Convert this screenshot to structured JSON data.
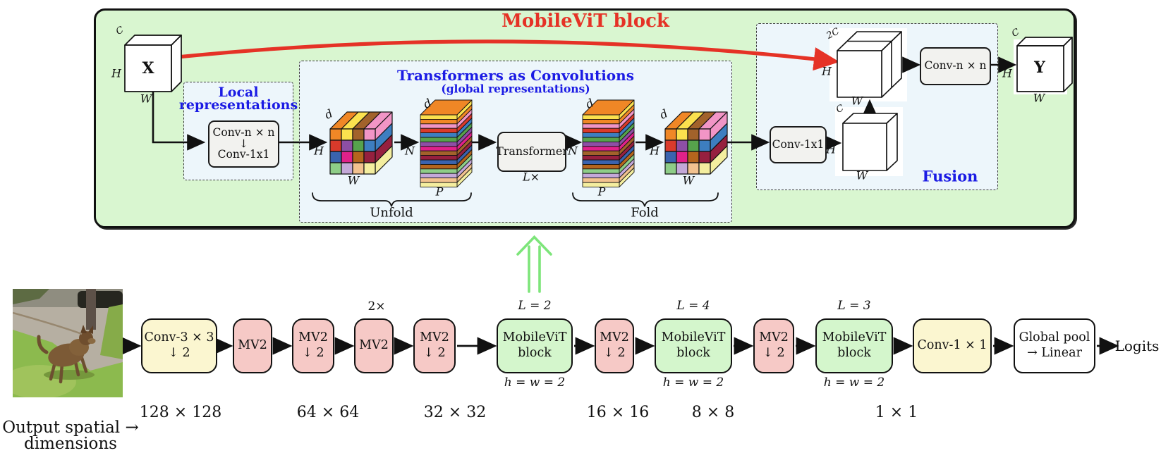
{
  "palette": {
    "panel_green": "#d9f6d0",
    "panel_blue": "#edf6fb",
    "box_gray": "#f2f2ef",
    "block_green": "#d4f6cc",
    "block_pink": "#f6c9c6",
    "block_yellow": "#fbf6d0",
    "accent_red": "#e53226",
    "accent_blue": "#1b1be4",
    "arrow_green": "#7de57a",
    "cube_front": [
      [
        "#f08726",
        "#fbe14e",
        "#a2622b",
        "#f195c6"
      ],
      [
        "#d93a2b",
        "#8d4fa5",
        "#56a24c",
        "#3d7ec0"
      ],
      [
        "#3a63ae",
        "#e0218a",
        "#b5651d",
        "#96203f"
      ],
      [
        "#8ecd87",
        "#c4a8d8",
        "#f2c28f",
        "#f4ee9f"
      ]
    ],
    "cube_side": [
      "#f195c6",
      "#3d7ec0",
      "#96203f",
      "#f4ee9f"
    ],
    "stack_top": "#f08726",
    "stack_strips": [
      "#fbe14e",
      "#f08726",
      "#f195c6",
      "#d93a2b",
      "#3d7ec0",
      "#56a24c",
      "#8d4fa5",
      "#e0218a",
      "#a2622b",
      "#96203f",
      "#3a63ae",
      "#b5651d",
      "#8ecd87",
      "#c4a8d8",
      "#f2c28f",
      "#f4ee9f"
    ]
  },
  "header": {
    "title": "MobileViT block"
  },
  "x_cube": {
    "name": "X",
    "c": "C",
    "h": "H",
    "w": "W"
  },
  "local": {
    "line1": "Local",
    "line2": "representations",
    "conv_a": "Conv-n × n",
    "arrow": "↓",
    "conv_b": "Conv-1x1"
  },
  "transformers": {
    "title": "Transformers as Convolutions",
    "subtitle": "(global representations)",
    "cube_in": {
      "d": "d",
      "h": "H",
      "w": "W"
    },
    "stack_in": {
      "d": "d",
      "n": "N",
      "p": "P"
    },
    "transformer": "Transformer",
    "repeat": "L×",
    "stack_out": {
      "d": "d",
      "n": "N",
      "p": "P"
    },
    "cube_out": {
      "d": "d",
      "h": "H",
      "w": "W"
    },
    "unfold": "Unfold",
    "fold": "Fold"
  },
  "fusion": {
    "conv_a": "Conv-1x1",
    "h1": "H",
    "cube_small": {
      "c": "C",
      "w": "W"
    },
    "cube_concat": {
      "c": "2C",
      "h": "H",
      "w": "W"
    },
    "conv_b": "Conv-n × n",
    "h2": "H",
    "label": "Fusion"
  },
  "y_cube": {
    "name": "Y",
    "c": "C",
    "h": "H",
    "w": "W"
  },
  "pipeline": {
    "blocks": [
      {
        "l1": "Conv-3 × 3",
        "l2": "↓ 2"
      },
      {
        "l1": "MV2"
      },
      {
        "l1": "MV2",
        "l2": "↓ 2"
      },
      {
        "l1": "MV2",
        "above": "2×"
      },
      {
        "l1": "MV2",
        "l2": "↓ 2"
      },
      {
        "l1": "MobileViT",
        "l2": "block",
        "above": "L = 2",
        "below": "h = w = 2"
      },
      {
        "l1": "MV2",
        "l2": "↓ 2"
      },
      {
        "l1": "MobileViT",
        "l2": "block",
        "above": "L = 4",
        "below": "h = w = 2"
      },
      {
        "l1": "MV2",
        "l2": "↓ 2"
      },
      {
        "l1": "MobileViT",
        "l2": "block",
        "above": "L = 3",
        "below": "h = w = 2"
      },
      {
        "l1": "Conv-1 × 1"
      },
      {
        "l1": "Global pool",
        "l2": "→ Linear"
      }
    ],
    "logits": "Logits",
    "dims": [
      "128 × 128",
      "64 × 64",
      "32 × 32",
      "16 × 16",
      "8 × 8",
      "1 × 1"
    ],
    "caption1": "Output spatial →",
    "caption2": "dimensions"
  }
}
